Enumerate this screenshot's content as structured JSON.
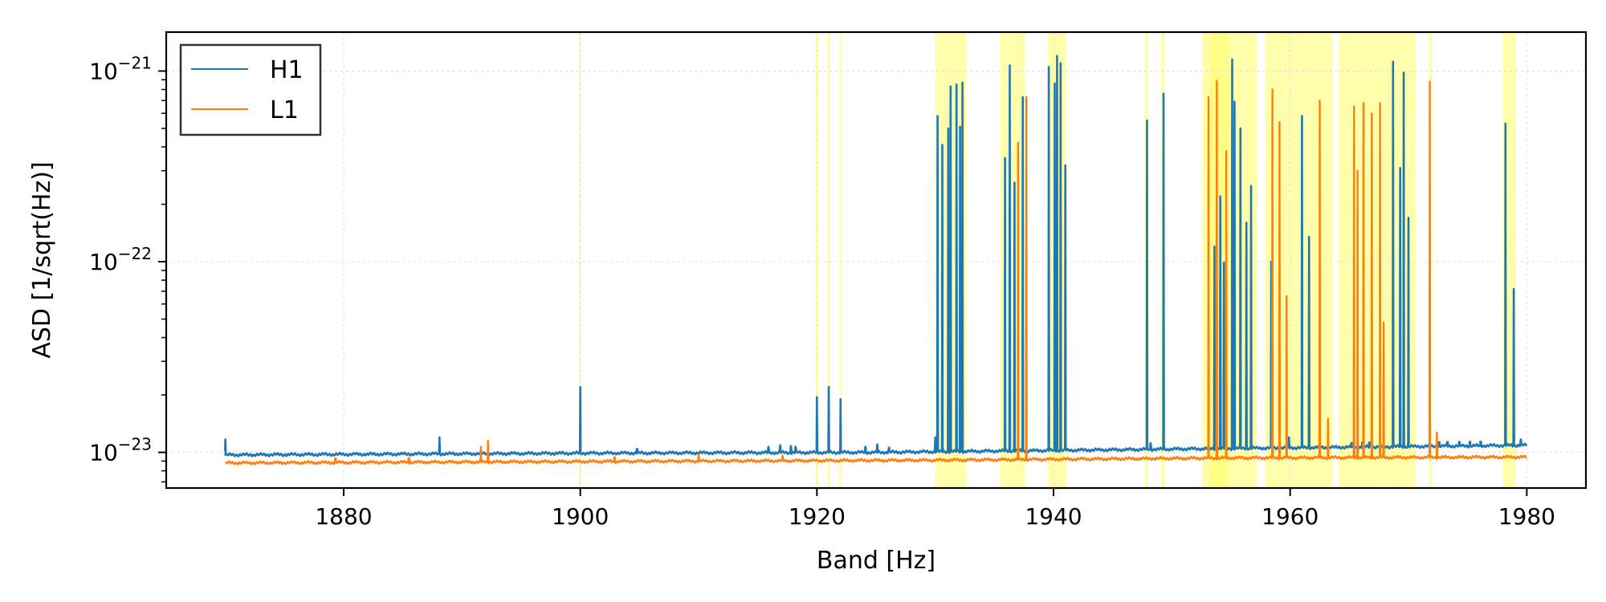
{
  "chart_data": {
    "type": "line",
    "xlabel": "Band [Hz]",
    "ylabel": "ASD [1/sqrt(Hz)]",
    "xlim": [
      1865,
      1985
    ],
    "ylim": [
      6.5e-24,
      1.6e-21
    ],
    "yscale": "log",
    "x_ticks": [
      1880,
      1900,
      1920,
      1940,
      1960,
      1980
    ],
    "y_ticks": [
      {
        "value": 1e-23,
        "base": "10",
        "exp": "−23"
      },
      {
        "value": 1e-22,
        "base": "10",
        "exp": "−22"
      },
      {
        "value": 1e-21,
        "base": "10",
        "exp": "−21"
      }
    ],
    "grid": true,
    "legend_position": "upper-left",
    "highlight_color": "#ffff66",
    "highlight_bands": [
      [
        1899.9,
        1900.1
      ],
      [
        1919.9,
        1920.1
      ],
      [
        1920.9,
        1921.1
      ],
      [
        1921.9,
        1922.1
      ],
      [
        1930.0,
        1932.6
      ],
      [
        1935.5,
        1937.6
      ],
      [
        1939.5,
        1941.1
      ],
      [
        1947.7,
        1948.0
      ],
      [
        1949.1,
        1949.4
      ],
      [
        1952.6,
        1955.3
      ],
      [
        1953.2,
        1954.8
      ],
      [
        1955.3,
        1957.2
      ],
      [
        1957.9,
        1960.1
      ],
      [
        1960.1,
        1962.1
      ],
      [
        1962.1,
        1963.6
      ],
      [
        1964.1,
        1967.6
      ],
      [
        1967.6,
        1970.6
      ],
      [
        1971.7,
        1972.0
      ],
      [
        1978.0,
        1979.1
      ]
    ],
    "series": [
      {
        "name": "H1",
        "color": "#1f77b4",
        "x_start": 1870,
        "x_end": 1980,
        "baseline": [
          [
            1870,
            9.7e-24
          ],
          [
            1900,
            9.9e-24
          ],
          [
            1925,
            1e-23
          ],
          [
            1950,
            1.04e-23
          ],
          [
            1980,
            1.09e-23
          ]
        ],
        "lines": [
          [
            1870.0,
            1.17e-23
          ],
          [
            1888.1,
            1.2e-23
          ],
          [
            1900.0,
            2.2e-23
          ],
          [
            1904.8,
            1.03e-23
          ],
          [
            1915.9,
            1.07e-23
          ],
          [
            1916.9,
            1.09e-23
          ],
          [
            1917.8,
            1.08e-23
          ],
          [
            1918.2,
            1.07e-23
          ],
          [
            1920.0,
            1.95e-23
          ],
          [
            1921.0,
            2.2e-23
          ],
          [
            1922.0,
            1.9e-23
          ],
          [
            1924.1,
            1.07e-23
          ],
          [
            1925.1,
            1.1e-23
          ],
          [
            1926.1,
            1.06e-23
          ],
          [
            1930.0,
            1.2e-23
          ],
          [
            1930.2,
            5.8e-22
          ],
          [
            1930.6,
            4.1e-22
          ],
          [
            1931.1,
            5e-22
          ],
          [
            1931.3,
            8.3e-22
          ],
          [
            1931.8,
            8.5e-22
          ],
          [
            1932.1,
            5.1e-22
          ],
          [
            1932.3,
            8.7e-22
          ],
          [
            1935.9,
            3.5e-22
          ],
          [
            1936.3,
            1.07e-21
          ],
          [
            1936.7,
            2.6e-22
          ],
          [
            1937.4,
            7.3e-22
          ],
          [
            1939.6,
            1.05e-21
          ],
          [
            1940.1,
            8.6e-22
          ],
          [
            1940.3,
            1.2e-21
          ],
          [
            1940.6,
            1.1e-21
          ],
          [
            1941.0,
            3.2e-22
          ],
          [
            1947.9,
            5.5e-22
          ],
          [
            1948.2,
            1.12e-23
          ],
          [
            1949.3,
            7.6e-22
          ],
          [
            1953.6,
            1.2e-22
          ],
          [
            1954.1,
            2.2e-22
          ],
          [
            1954.4,
            9.9e-23
          ],
          [
            1955.1,
            1.15e-21
          ],
          [
            1955.3,
            6.9e-22
          ],
          [
            1955.8,
            5e-22
          ],
          [
            1956.3,
            1.6e-22
          ],
          [
            1956.7,
            2.5e-22
          ],
          [
            1958.4,
            1e-22
          ],
          [
            1959.9,
            1.2e-23
          ],
          [
            1961.0,
            5.8e-22
          ],
          [
            1961.6,
            1.35e-22
          ],
          [
            1965.2,
            1.12e-23
          ],
          [
            1966.1,
            1.13e-23
          ],
          [
            1966.7,
            1.13e-23
          ],
          [
            1968.7,
            1.12e-21
          ],
          [
            1969.3,
            3.1e-22
          ],
          [
            1969.6,
            9.8e-22
          ],
          [
            1970.0,
            1.7e-22
          ],
          [
            1972.6,
            1.08e-23
          ],
          [
            1973.3,
            1.08e-23
          ],
          [
            1974.3,
            1.08e-23
          ],
          [
            1975.2,
            1.08e-23
          ],
          [
            1976.1,
            1.08e-23
          ],
          [
            1978.2,
            5.3e-22
          ],
          [
            1978.9,
            7.2e-23
          ],
          [
            1979.5,
            1.17e-23
          ]
        ]
      },
      {
        "name": "L1",
        "color": "#ff7f0e",
        "x_start": 1870,
        "x_end": 1980,
        "baseline": [
          [
            1870,
            8.8e-24
          ],
          [
            1900,
            8.95e-24
          ],
          [
            1930,
            9.1e-24
          ],
          [
            1955,
            9.35e-24
          ],
          [
            1980,
            9.45e-24
          ]
        ],
        "lines": [
          [
            1879.3,
            8.95e-24
          ],
          [
            1885.5,
            9.1e-24
          ],
          [
            1891.6,
            1.07e-23
          ],
          [
            1892.2,
            1.15e-23
          ],
          [
            1902.9,
            9.3e-24
          ],
          [
            1910.0,
            9.7e-24
          ],
          [
            1917.1,
            9.6e-24
          ],
          [
            1937.0,
            4.2e-22
          ],
          [
            1937.7,
            7.3e-22
          ],
          [
            1953.1,
            7.3e-22
          ],
          [
            1953.8,
            8.9e-22
          ],
          [
            1954.6,
            3.8e-22
          ],
          [
            1958.5,
            8e-22
          ],
          [
            1959.1,
            5.4e-22
          ],
          [
            1959.7,
            6.6e-23
          ],
          [
            1962.5,
            7e-22
          ],
          [
            1963.2,
            1.5e-23
          ],
          [
            1965.4,
            6.5e-22
          ],
          [
            1965.7,
            3e-22
          ],
          [
            1966.2,
            6.8e-22
          ],
          [
            1966.9,
            6e-22
          ],
          [
            1967.6,
            6.8e-22
          ],
          [
            1967.9,
            4.8e-23
          ],
          [
            1971.8,
            8.8e-22
          ],
          [
            1972.4,
            1.27e-23
          ]
        ]
      }
    ]
  }
}
